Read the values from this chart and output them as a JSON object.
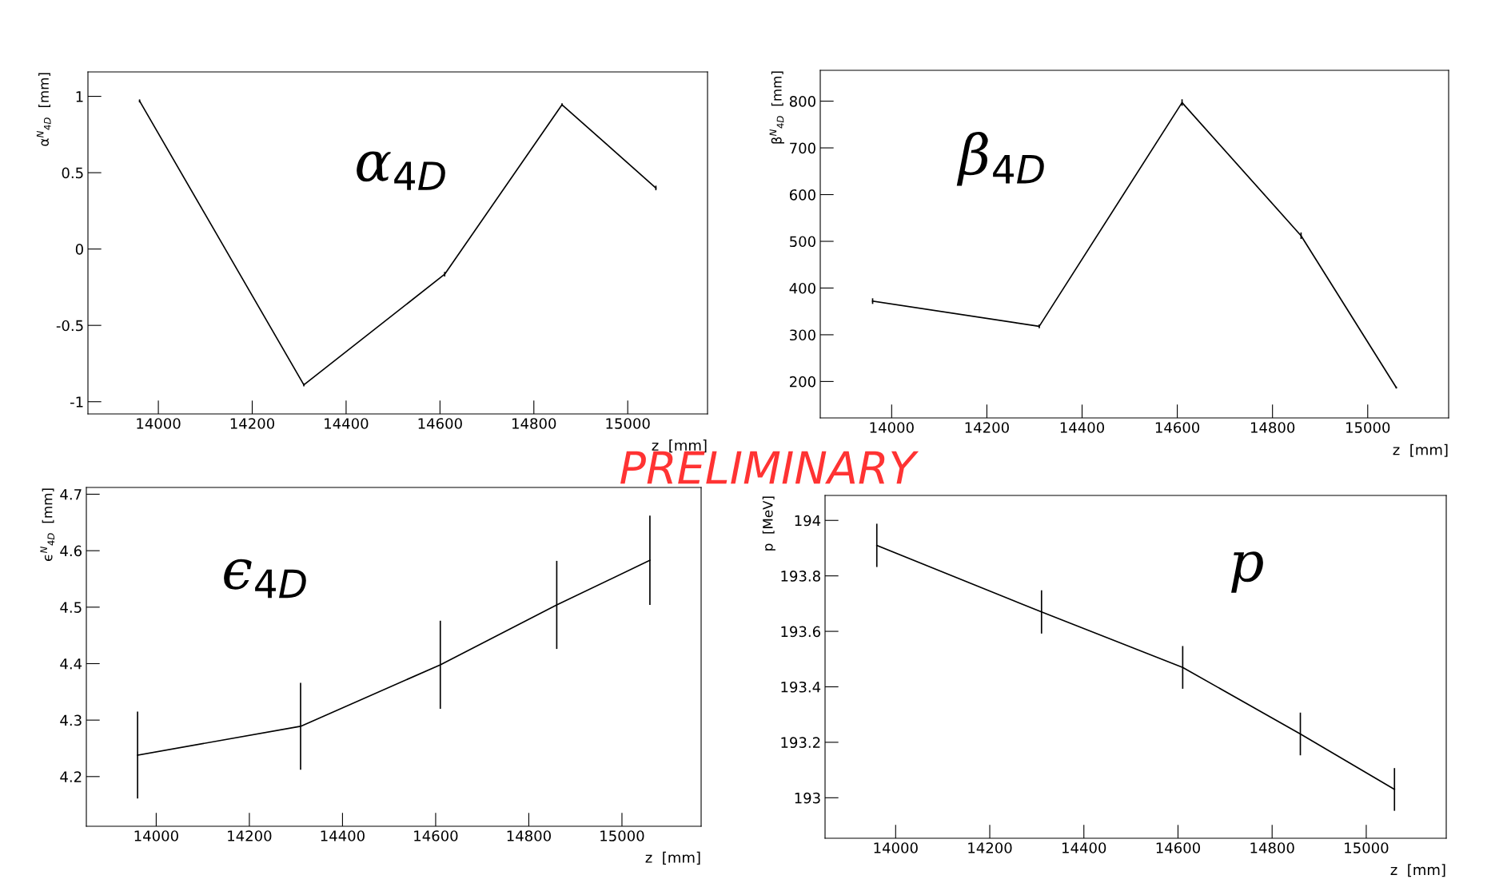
{
  "chart_data": [
    {
      "type": "line",
      "ylabel": "α$^{N}$$_{4D}$  [mm]",
      "xlabel": "z  [mm]",
      "annotations": [
        "α$_{4D}$",
        "PRELIMINARY"
      ],
      "x": [
        13960,
        14310,
        14610,
        14860,
        15060
      ],
      "xlim": [
        13850,
        15170
      ],
      "xticks": [
        14000,
        14200,
        14400,
        14600,
        14800,
        15000
      ],
      "ylim": [
        -1.08,
        1.16
      ],
      "yticks": [
        -1,
        -0.5,
        0,
        0.5,
        1
      ],
      "grid": false,
      "marker": "none",
      "series": [
        {
          "color": "#000000",
          "values": [
            0.97,
            -0.89,
            -0.165,
            0.945,
            0.4
          ],
          "errors": [
            0.01,
            0.01,
            0.015,
            0.01,
            0.015
          ]
        }
      ]
    },
    {
      "type": "line",
      "ylabel": "β$^{N}$$_{4D}$  [mm]",
      "xlabel": "z  [mm]",
      "annotations": [
        "β$_{4D}$"
      ],
      "x": [
        13960,
        14310,
        14610,
        14860,
        15060
      ],
      "xlim": [
        13850,
        15170
      ],
      "xticks": [
        14000,
        14200,
        14400,
        14600,
        14800,
        15000
      ],
      "ylim": [
        122,
        866
      ],
      "yticks": [
        200,
        300,
        400,
        500,
        600,
        700,
        800
      ],
      "grid": false,
      "marker": "none",
      "series": [
        {
          "color": "#000000",
          "values": [
            372,
            318,
            797,
            512,
            187
          ],
          "errors": [
            6,
            4,
            7,
            7,
            2
          ]
        }
      ]
    },
    {
      "type": "line",
      "ylabel": "ϵ$^{N}$$_{4D}$  [mm]",
      "xlabel": "z  [mm]",
      "annotations": [
        "ϵ$_{4D}$"
      ],
      "x": [
        13960,
        14310,
        14610,
        14860,
        15060
      ],
      "xlim": [
        13850,
        15170
      ],
      "xticks": [
        14000,
        14200,
        14400,
        14600,
        14800,
        15000
      ],
      "ylim": [
        4.112,
        4.712
      ],
      "yticks": [
        4.2,
        4.3,
        4.4,
        4.5,
        4.6,
        4.7
      ],
      "grid": false,
      "marker": "none",
      "series": [
        {
          "color": "#000000",
          "values": [
            4.238,
            4.289,
            4.398,
            4.504,
            4.583
          ],
          "errors": [
            0.077,
            0.077,
            0.078,
            0.078,
            0.079
          ]
        }
      ]
    },
    {
      "type": "line",
      "ylabel": "p  [MeV]",
      "xlabel": "z  [mm]",
      "annotations": [
        "p"
      ],
      "x": [
        13960,
        14310,
        14610,
        14860,
        15060
      ],
      "xlim": [
        13850,
        15170
      ],
      "xticks": [
        14000,
        14200,
        14400,
        14600,
        14800,
        15000
      ],
      "ylim": [
        192.854,
        194.09
      ],
      "yticks": [
        193,
        193.2,
        193.4,
        193.6,
        193.8,
        194
      ],
      "grid": false,
      "marker": "none",
      "series": [
        {
          "color": "#000000",
          "values": [
            193.91,
            193.67,
            193.47,
            193.23,
            193.03
          ],
          "errors": [
            0.078,
            0.078,
            0.077,
            0.077,
            0.077
          ]
        }
      ]
    }
  ]
}
